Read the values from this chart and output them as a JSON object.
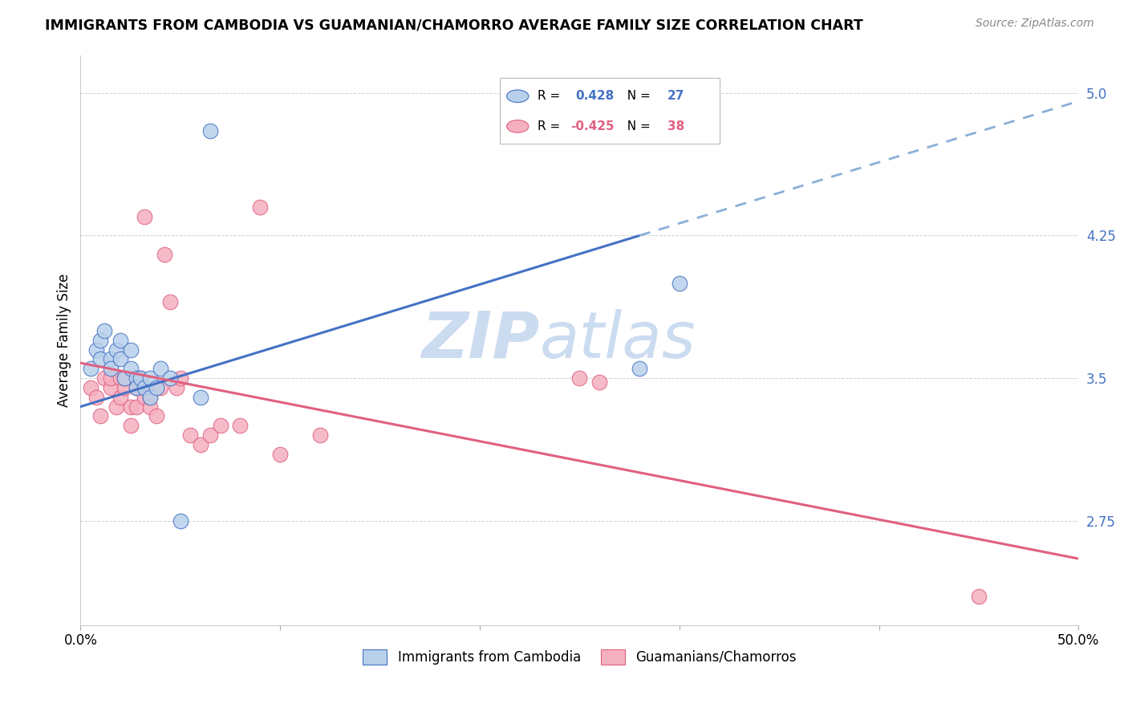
{
  "title": "IMMIGRANTS FROM CAMBODIA VS GUAMANIAN/CHAMORRO AVERAGE FAMILY SIZE CORRELATION CHART",
  "source": "Source: ZipAtlas.com",
  "ylabel": "Average Family Size",
  "yticks": [
    2.75,
    3.5,
    4.25,
    5.0
  ],
  "xmin": 0.0,
  "xmax": 0.5,
  "ymin": 2.2,
  "ymax": 5.2,
  "blue_r": 0.428,
  "blue_n": 27,
  "pink_r": -0.425,
  "pink_n": 38,
  "blue_scatter_x": [
    0.005,
    0.008,
    0.01,
    0.01,
    0.012,
    0.015,
    0.015,
    0.018,
    0.02,
    0.02,
    0.022,
    0.025,
    0.025,
    0.028,
    0.028,
    0.03,
    0.032,
    0.035,
    0.035,
    0.038,
    0.04,
    0.045,
    0.05,
    0.06,
    0.065,
    0.28,
    0.3
  ],
  "blue_scatter_y": [
    3.55,
    3.65,
    3.7,
    3.6,
    3.75,
    3.6,
    3.55,
    3.65,
    3.7,
    3.6,
    3.5,
    3.55,
    3.65,
    3.5,
    3.45,
    3.5,
    3.45,
    3.5,
    3.4,
    3.45,
    3.55,
    3.5,
    2.75,
    3.4,
    4.8,
    3.55,
    4.0
  ],
  "pink_scatter_x": [
    0.005,
    0.008,
    0.01,
    0.012,
    0.015,
    0.015,
    0.018,
    0.02,
    0.02,
    0.022,
    0.022,
    0.025,
    0.025,
    0.028,
    0.028,
    0.03,
    0.03,
    0.032,
    0.032,
    0.035,
    0.035,
    0.038,
    0.04,
    0.042,
    0.045,
    0.048,
    0.05,
    0.055,
    0.06,
    0.065,
    0.07,
    0.08,
    0.09,
    0.1,
    0.12,
    0.25,
    0.26,
    0.45
  ],
  "pink_scatter_y": [
    3.45,
    3.4,
    3.3,
    3.5,
    3.45,
    3.5,
    3.35,
    3.5,
    3.4,
    3.45,
    3.5,
    3.35,
    3.25,
    3.45,
    3.35,
    3.5,
    3.45,
    3.4,
    4.35,
    3.4,
    3.35,
    3.3,
    3.45,
    4.15,
    3.9,
    3.45,
    3.5,
    3.2,
    3.15,
    3.2,
    3.25,
    3.25,
    4.4,
    3.1,
    3.2,
    3.5,
    3.48,
    2.35
  ],
  "blue_color": "#b8d0ea",
  "pink_color": "#f5b0c0",
  "blue_line_color": "#4472c4",
  "pink_line_color": "#e06080",
  "blue_dash_color": "#8ab0d8",
  "watermark_zip": "ZIP",
  "watermark_atlas": "atlas",
  "watermark_color": "#ccdcf0"
}
